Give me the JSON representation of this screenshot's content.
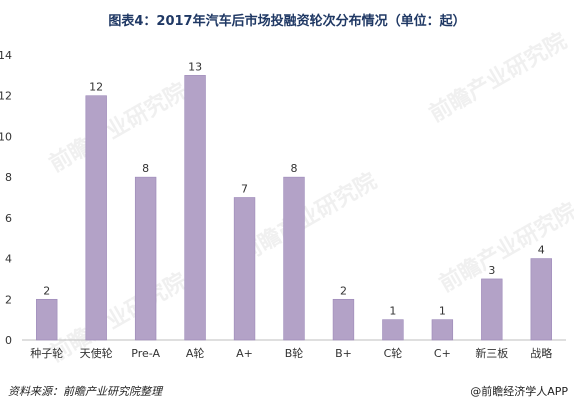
{
  "title": "图表4：2017年汽车后市场投融资轮次分布情况（单位：起）",
  "footer": {
    "source": "资料来源：前瞻产业研究院整理",
    "brand": "@前瞻经济学人APP"
  },
  "watermark": "前瞻产业研究院",
  "colors": {
    "bar": "#b3a2c7",
    "bar_stroke": "#9c88b8",
    "axis": "#bfbfbf",
    "title": "#1f3864"
  },
  "chart_data": {
    "type": "bar",
    "categories": [
      "种子轮",
      "天使轮",
      "Pre-A",
      "A轮",
      "A+",
      "B轮",
      "B+",
      "C轮",
      "C+",
      "新三板",
      "战略"
    ],
    "values": [
      2,
      12,
      8,
      13,
      7,
      8,
      2,
      1,
      1,
      3,
      4
    ],
    "ylim": [
      0,
      14
    ],
    "yticks": [
      0,
      2,
      4,
      6,
      8,
      10,
      12,
      14
    ],
    "grid": false,
    "data_labels": true
  }
}
